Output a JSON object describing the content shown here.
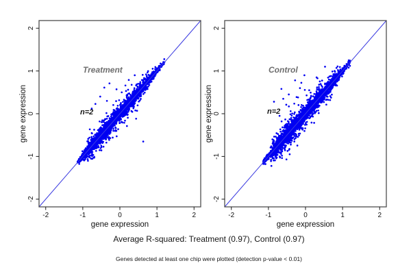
{
  "figure": {
    "title": "Average R-squared: Treatment (0.97), Control (0.97)",
    "footnote": "Genes detected at least one chip were plotted (detection p-value < 0.01)"
  },
  "chart_data": {
    "type": "scatter",
    "description": "Two-panel replicate concordance scatter plots of microarray gene expression; dense blue point clouds hugging the y=x identity line, one panel per condition",
    "colors": {
      "marker": "#0000f2",
      "identity_line": "#3a3ae0",
      "panel_label": "#6e6e6e",
      "axis_box": "#4d4d4d",
      "tick": "#1a1a1a",
      "text": "#000000"
    },
    "axes": {
      "xlabel": "gene expression",
      "ylabel": "gene expression",
      "xlim": [
        -2.18,
        2.18
      ],
      "ylim": [
        -2.18,
        2.18
      ],
      "ticks": [
        -2,
        -1,
        0,
        1,
        2
      ],
      "grid": false
    },
    "identity_line": true,
    "legend_position": "none",
    "panels": [
      {
        "label": "Treatment",
        "annotation": "n=2",
        "r_squared": 0.97,
        "cloud": {
          "seed": 20107,
          "n": 4200,
          "spine_n": 170,
          "t_min": -1.14,
          "t_max": 1.2,
          "mix": [
            {
              "w": 0.55,
              "mean": -0.55,
              "sd": 0.33
            },
            {
              "w": 0.45,
              "mean": 0.25,
              "sd": 0.45
            }
          ],
          "noise": [
            [
              0.8,
              0.055
            ],
            [
              0.15,
              0.12
            ],
            [
              0.05,
              0.2
            ]
          ]
        },
        "outliers": [
          [
            -0.42,
            0.61
          ],
          [
            -0.28,
            0.71
          ],
          [
            0.24,
            0.79
          ],
          [
            0.4,
            0.9
          ],
          [
            0.15,
            0.66
          ],
          [
            -0.53,
            0.4
          ],
          [
            -0.66,
            0.23
          ],
          [
            -0.09,
            0.57
          ],
          [
            0.55,
            0.74
          ],
          [
            0.63,
            -0.65
          ],
          [
            -0.76,
            0.12
          ],
          [
            0.05,
            0.5
          ],
          [
            -0.35,
            0.3
          ]
        ]
      },
      {
        "label": "Control",
        "annotation": "n=2",
        "r_squared": 0.97,
        "cloud": {
          "seed": 7753,
          "n": 4200,
          "spine_n": 170,
          "t_min": -1.14,
          "t_max": 1.2,
          "mix": [
            {
              "w": 0.55,
              "mean": -0.5,
              "sd": 0.34
            },
            {
              "w": 0.45,
              "mean": 0.25,
              "sd": 0.45
            }
          ],
          "noise": [
            [
              0.76,
              0.06
            ],
            [
              0.17,
              0.13
            ],
            [
              0.07,
              0.21
            ]
          ]
        },
        "outliers": [
          [
            -0.65,
            0.58
          ],
          [
            -0.28,
            0.78
          ],
          [
            -0.03,
            0.9
          ],
          [
            -0.52,
            0.21
          ],
          [
            -0.24,
            0.39
          ],
          [
            -0.4,
            0.06
          ],
          [
            -0.85,
            0.28
          ],
          [
            -0.6,
            0.35
          ],
          [
            0.3,
            0.85
          ],
          [
            0.55,
            0.7
          ],
          [
            -0.7,
            -0.05
          ],
          [
            0.1,
            0.55
          ],
          [
            -0.45,
            0.45
          ],
          [
            -0.15,
            0.6
          ]
        ]
      }
    ]
  }
}
